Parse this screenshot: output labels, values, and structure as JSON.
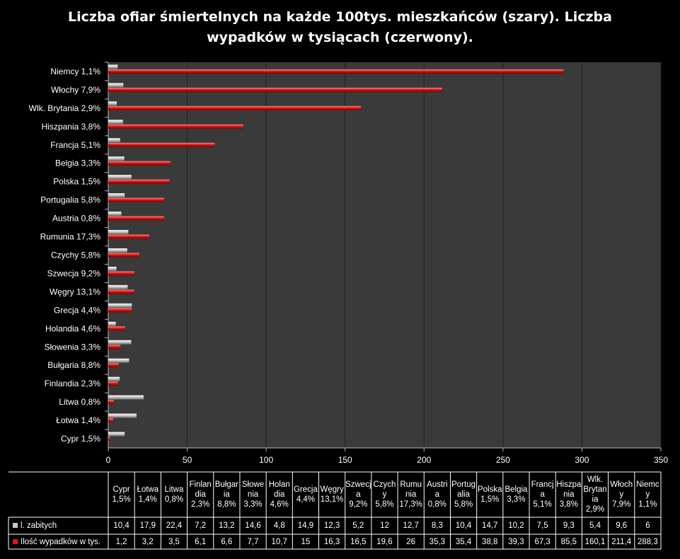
{
  "title_lines": [
    "Liczba ofiar śmiertelnych na każde 100tys. mieszkańców (szary). Liczba",
    "wypadków w tysiącach (czerwony)."
  ],
  "colors": {
    "background": "#000000",
    "plot_area": "#3a3a3a",
    "gray_series": "#c8c8c8",
    "red_series": "#e01515",
    "grid": "#222222",
    "table_border": "#ffffff"
  },
  "chart_data": {
    "type": "bar",
    "orientation": "horizontal",
    "title": "Liczba ofiar śmiertelnych na każde 100tys. mieszkańców (szary). Liczba wypadków w tysiącach (czerwony).",
    "categories": [
      "Cypr 1,5%",
      "Łotwa 1,4%",
      "Litwa 0,8%",
      "Finlandia 2,3%",
      "Bułgaria 8,8%",
      "Słowenia 3,3%",
      "Holandia 4,6%",
      "Grecja 4,4%",
      "Węgry 13,1%",
      "Szwecja 9,2%",
      "Czychy 5,8%",
      "Rumunia 17,3%",
      "Austria 0,8%",
      "Portugalia 5,8%",
      "Polska 1,5%",
      "Belgia 3,3%",
      "Francja 5,1%",
      "Hiszpania 3,8%",
      "Wlk. Brytania 2,9%",
      "Włochy 7,9%",
      "Niemcy 1,1%"
    ],
    "series": [
      {
        "name": "l. zabitych",
        "color": "#c8c8c8",
        "values": [
          10.4,
          17.9,
          22.4,
          7.2,
          13.2,
          14.6,
          4.8,
          14.9,
          12.3,
          5.2,
          12,
          12.7,
          8.3,
          10.4,
          14.7,
          10.2,
          7.5,
          9.3,
          5.4,
          9.6,
          6
        ]
      },
      {
        "name": "Ilość wypadków  w tys.",
        "color": "#e01515",
        "values": [
          1.2,
          3.2,
          3.5,
          6.1,
          6.6,
          7.7,
          10.7,
          15,
          16.3,
          16.5,
          19.6,
          26,
          35.3,
          35.4,
          38.8,
          39.3,
          67.3,
          85.5,
          160.1,
          211.4,
          288.3
        ]
      }
    ],
    "x_ticks": [
      "0",
      "50",
      "100",
      "150",
      "200",
      "250",
      "300",
      "350"
    ],
    "xlim": [
      0,
      350
    ],
    "grid": true,
    "legend": "data-table",
    "table": {
      "col_headers": [
        [
          "Cypr",
          "1,5%"
        ],
        [
          "Łotwa",
          "1,4%"
        ],
        [
          "Litwa",
          "0,8%"
        ],
        [
          "Finlan",
          "dia",
          "2,3%"
        ],
        [
          "Bułgar",
          "ia",
          "8,8%"
        ],
        [
          "Słowe",
          "nia",
          "3,3%"
        ],
        [
          "Holan",
          "dia",
          "4,6%"
        ],
        [
          "Grecja",
          "4,4%"
        ],
        [
          "Węgry",
          "13,1%"
        ],
        [
          "Szwecj",
          "a",
          "9,2%"
        ],
        [
          "Czych",
          "y",
          "5,8%"
        ],
        [
          "Rumu",
          "nia",
          "17,3%"
        ],
        [
          "Austri",
          "a",
          "0,8%"
        ],
        [
          "Portug",
          "alia",
          "5,8%"
        ],
        [
          "Polska",
          "1,5%"
        ],
        [
          "Belgia",
          "3,3%"
        ],
        [
          "Francj",
          "a",
          "5,1%"
        ],
        [
          "Hiszpa",
          "nia",
          "3,8%"
        ],
        [
          "Wlk.",
          "Brytan",
          "ia",
          "2,9%"
        ],
        [
          "Włoch",
          "y",
          "7,9%"
        ],
        [
          "Niemc",
          "y",
          "1,1%"
        ]
      ],
      "rows": [
        {
          "label": "l. zabitych",
          "cells": [
            "10,4",
            "17,9",
            "22,4",
            "7,2",
            "13,2",
            "14,6",
            "4,8",
            "14,9",
            "12,3",
            "5,2",
            "12",
            "12,7",
            "8,3",
            "10,4",
            "14,7",
            "10,2",
            "7,5",
            "9,3",
            "5,4",
            "9,6",
            "6"
          ]
        },
        {
          "label": "Ilość wypadków  w tys.",
          "cells": [
            "1,2",
            "3,2",
            "3,5",
            "6,1",
            "6,6",
            "7,7",
            "10,7",
            "15",
            "16,3",
            "16,5",
            "19,6",
            "26",
            "35,3",
            "35,4",
            "38,8",
            "39,3",
            "67,3",
            "85,5",
            "160,1",
            "211,4",
            "288,3"
          ]
        }
      ]
    }
  }
}
